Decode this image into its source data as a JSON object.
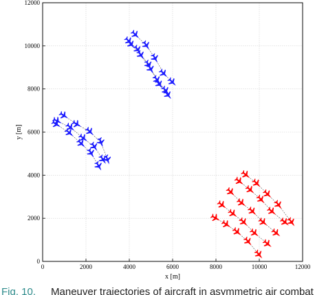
{
  "chart_data": {
    "type": "scatter",
    "title": "",
    "xlabel": "x [m]",
    "ylabel": "y [m]",
    "xlim": [
      0,
      12000
    ],
    "ylim": [
      0,
      12000
    ],
    "xticks": [
      0,
      2000,
      4000,
      6000,
      8000,
      10000,
      12000
    ],
    "yticks": [
      0,
      2000,
      4000,
      6000,
      8000,
      10000,
      12000
    ],
    "grid": true,
    "legend": "none",
    "series": [
      {
        "color": "#1a1aff",
        "marker": "jet-icon",
        "trajectories": [
          [
            [
              700,
              6500
            ],
            [
              1300,
              6200
            ],
            [
              1900,
              5700
            ],
            [
              2400,
              5300
            ],
            [
              2800,
              4700
            ]
          ],
          [
            [
              1000,
              6750
            ],
            [
              1600,
              6350
            ],
            [
              2200,
              6000
            ],
            [
              2700,
              5500
            ],
            [
              3000,
              4700
            ]
          ],
          [
            [
              650,
              6350
            ],
            [
              1250,
              5950
            ],
            [
              1800,
              5450
            ],
            [
              2250,
              5000
            ],
            [
              2600,
              4400
            ]
          ],
          [
            [
              4000,
              10200
            ],
            [
              4400,
              9800
            ],
            [
              4900,
              9100
            ],
            [
              5300,
              8400
            ],
            [
              5700,
              7900
            ]
          ],
          [
            [
              4300,
              10500
            ],
            [
              4800,
              10000
            ],
            [
              5200,
              9400
            ],
            [
              5600,
              8700
            ],
            [
              6000,
              8300
            ]
          ],
          [
            [
              4100,
              10050
            ],
            [
              4550,
              9550
            ],
            [
              5000,
              8900
            ],
            [
              5400,
              8200
            ],
            [
              5800,
              7700
            ]
          ]
        ]
      },
      {
        "color": "#ff0000",
        "marker": "jet-icon",
        "trajectories": [
          [
            [
              8000,
              2000
            ],
            [
              8500,
              1700
            ],
            [
              9000,
              1350
            ],
            [
              9500,
              900
            ],
            [
              10000,
              300
            ]
          ],
          [
            [
              8300,
              2600
            ],
            [
              8800,
              2200
            ],
            [
              9300,
              1800
            ],
            [
              9800,
              1300
            ],
            [
              10400,
              800
            ]
          ],
          [
            [
              8700,
              3200
            ],
            [
              9200,
              2700
            ],
            [
              9700,
              2300
            ],
            [
              10200,
              1800
            ],
            [
              10800,
              1300
            ]
          ],
          [
            [
              9100,
              3700
            ],
            [
              9600,
              3300
            ],
            [
              10100,
              2850
            ],
            [
              10600,
              2300
            ],
            [
              11200,
              1800
            ]
          ],
          [
            [
              9400,
              4000
            ],
            [
              9900,
              3600
            ],
            [
              10400,
              3100
            ],
            [
              10900,
              2600
            ],
            [
              11500,
              1800
            ]
          ]
        ]
      }
    ]
  },
  "caption": {
    "label": "Fig. 10.",
    "text": "Maneuver trajectories of aircraft in asymmetric air combat"
  }
}
